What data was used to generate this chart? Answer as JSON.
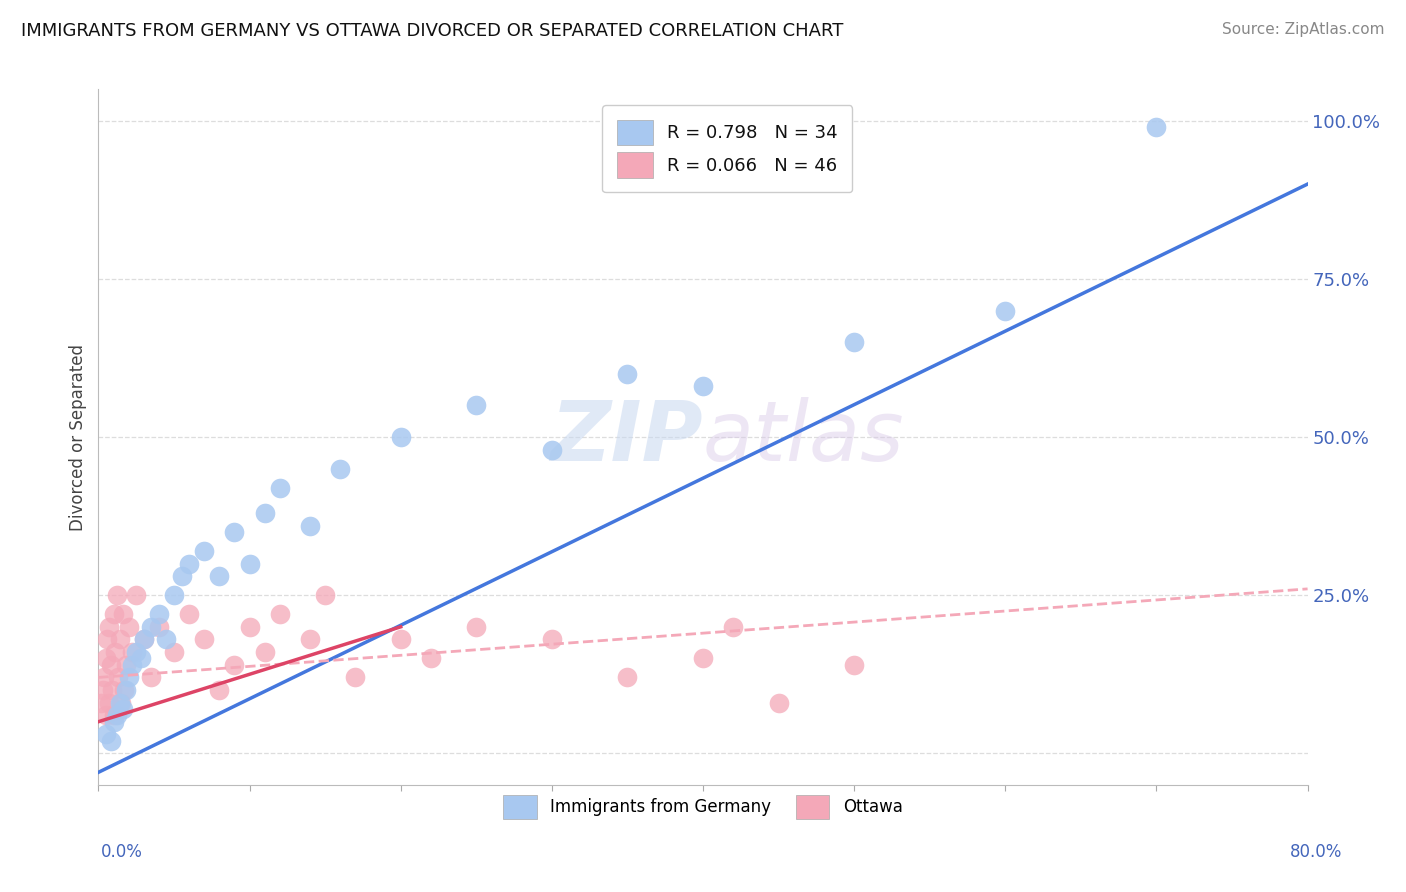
{
  "title": "IMMIGRANTS FROM GERMANY VS OTTAWA DIVORCED OR SEPARATED CORRELATION CHART",
  "source_text": "Source: ZipAtlas.com",
  "ylabel": "Divorced or Separated",
  "xmin": 0.0,
  "xmax": 80.0,
  "ymin": -5.0,
  "ymax": 105.0,
  "legend_blue_label": "R = 0.798   N = 34",
  "legend_pink_label": "R = 0.066   N = 46",
  "legend_germany_label": "Immigrants from Germany",
  "legend_ottawa_label": "Ottawa",
  "watermark": "ZIPatlas",
  "blue_color": "#a8c8f0",
  "pink_color": "#f4a8b8",
  "blue_line_color": "#4477dd",
  "pink_solid_color": "#dd4466",
  "pink_dashed_color": "#f4a8b8",
  "axis_color": "#4466bb",
  "grid_color": "#dddddd",
  "blue_line_x0": 0.0,
  "blue_line_y0": -3.0,
  "blue_line_x1": 80.0,
  "blue_line_y1": 90.0,
  "pink_solid_x0": 0.0,
  "pink_solid_y0": 5.0,
  "pink_solid_x1": 20.0,
  "pink_solid_y1": 20.0,
  "pink_dashed_x0": 0.0,
  "pink_dashed_y0": 12.0,
  "pink_dashed_x1": 80.0,
  "pink_dashed_y1": 26.0,
  "blue_scatter_x": [
    0.5,
    0.8,
    1.0,
    1.2,
    1.4,
    1.6,
    1.8,
    2.0,
    2.2,
    2.5,
    2.8,
    3.0,
    3.5,
    4.0,
    4.5,
    5.0,
    5.5,
    6.0,
    7.0,
    8.0,
    9.0,
    10.0,
    11.0,
    12.0,
    14.0,
    16.0,
    20.0,
    25.0,
    30.0,
    35.0,
    40.0,
    50.0,
    60.0,
    70.0
  ],
  "blue_scatter_y": [
    3,
    2,
    5,
    6,
    8,
    7,
    10,
    12,
    14,
    16,
    15,
    18,
    20,
    22,
    18,
    25,
    28,
    30,
    32,
    28,
    35,
    30,
    38,
    42,
    36,
    45,
    50,
    55,
    48,
    60,
    58,
    65,
    70,
    99
  ],
  "pink_scatter_x": [
    0.2,
    0.3,
    0.4,
    0.5,
    0.5,
    0.6,
    0.7,
    0.7,
    0.8,
    0.9,
    1.0,
    1.0,
    1.1,
    1.2,
    1.3,
    1.4,
    1.5,
    1.6,
    1.7,
    1.8,
    2.0,
    2.2,
    2.5,
    3.0,
    3.5,
    4.0,
    5.0,
    6.0,
    7.0,
    8.0,
    9.0,
    10.0,
    11.0,
    12.0,
    14.0,
    15.0,
    17.0,
    20.0,
    22.0,
    25.0,
    30.0,
    35.0,
    40.0,
    42.0,
    45.0,
    50.0
  ],
  "pink_scatter_y": [
    8,
    10,
    12,
    6,
    15,
    18,
    8,
    20,
    14,
    10,
    22,
    6,
    16,
    25,
    12,
    18,
    8,
    22,
    10,
    14,
    20,
    16,
    25,
    18,
    12,
    20,
    16,
    22,
    18,
    10,
    14,
    20,
    16,
    22,
    18,
    25,
    12,
    18,
    15,
    20,
    18,
    12,
    15,
    20,
    8,
    14
  ]
}
